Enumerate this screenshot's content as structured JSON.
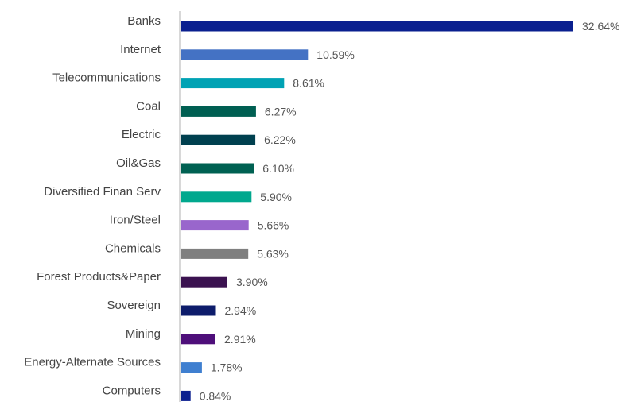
{
  "chart_data": {
    "type": "bar",
    "orientation": "horizontal",
    "categories": [
      "Banks",
      "Internet",
      "Telecommunications",
      "Coal",
      "Electric",
      "Oil&Gas",
      "Diversified Finan Serv",
      "Iron/Steel",
      "Chemicals",
      "Forest Products&Paper",
      "Sovereign",
      "Mining",
      "Energy-Alternate Sources",
      "Computers"
    ],
    "values": [
      32.64,
      10.59,
      8.61,
      6.27,
      6.22,
      6.1,
      5.9,
      5.66,
      5.63,
      3.9,
      2.94,
      2.91,
      1.78,
      0.84
    ],
    "value_labels": [
      "32.64%",
      "10.59%",
      "8.61%",
      "6.27%",
      "6.22%",
      "6.10%",
      "5.90%",
      "5.66%",
      "5.63%",
      "3.90%",
      "2.94%",
      "2.91%",
      "1.78%",
      "0.84%"
    ],
    "colors": [
      "#0a1f8f",
      "#4472c4",
      "#00a2b4",
      "#005f52",
      "#00404f",
      "#006152",
      "#00a88e",
      "#9966cc",
      "#7f7f7f",
      "#3b1250",
      "#0d1c6b",
      "#4e0f7a",
      "#3f7fd0",
      "#0a1f8f"
    ],
    "unit": "%",
    "xlim": [
      0,
      33
    ],
    "grid": false,
    "legend": "none",
    "title": "",
    "xlabel": "",
    "ylabel": ""
  }
}
